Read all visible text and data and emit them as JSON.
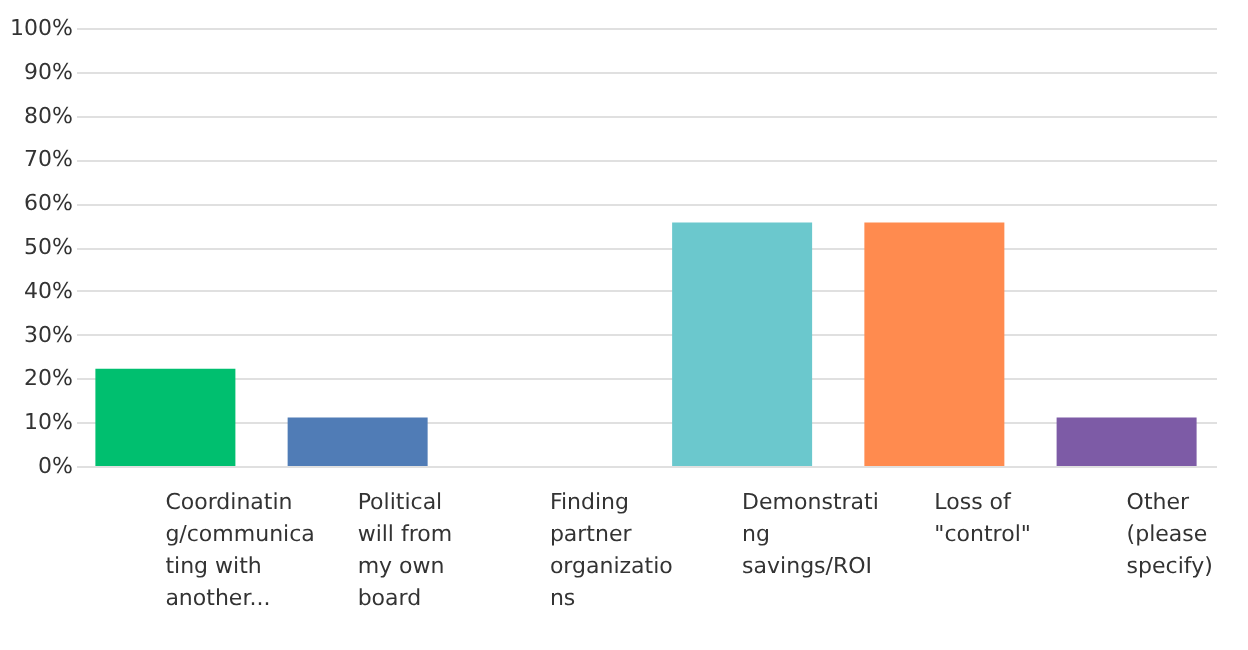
{
  "chart_data": {
    "type": "bar",
    "categories": [
      "Coordinatin\ng/communica\nting with\nanother...",
      "Political\nwill from\nmy own\nboard",
      "Finding\npartner\norganizatio\nns",
      "Demonstrati\nng\nsavings/ROI",
      "Loss of\n\"control\"",
      "Other\n(please\nspecify)"
    ],
    "values": [
      22.2,
      11.1,
      0,
      55.6,
      55.6,
      11.1
    ],
    "colors": [
      "#00bf6f",
      "#507cb6",
      "#c9c9c9",
      "#6bc8cd",
      "#ff8b4f",
      "#7d5ba6"
    ],
    "ylim": [
      0,
      100
    ],
    "yticks": [
      {
        "value": 0,
        "label": "0%"
      },
      {
        "value": 10,
        "label": "10%"
      },
      {
        "value": 20,
        "label": "20%"
      },
      {
        "value": 30,
        "label": "30%"
      },
      {
        "value": 40,
        "label": "40%"
      },
      {
        "value": 50,
        "label": "50%"
      },
      {
        "value": 60,
        "label": "60%"
      },
      {
        "value": 70,
        "label": "70%"
      },
      {
        "value": 80,
        "label": "80%"
      },
      {
        "value": 90,
        "label": "90%"
      },
      {
        "value": 100,
        "label": "100%"
      }
    ],
    "grid": "y"
  }
}
